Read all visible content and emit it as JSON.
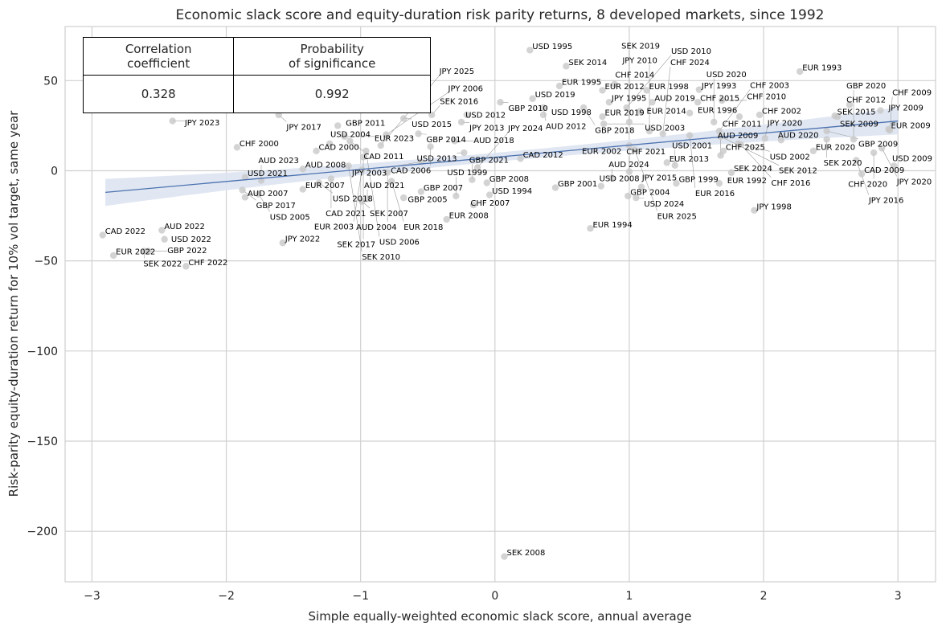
{
  "chart_data": {
    "type": "scatter",
    "title": "Economic slack score and equity-duration risk parity returns, 8 developed markets, since 1992",
    "xlabel": "Simple equally-weighted economic slack score, annual average",
    "ylabel": "Risk-parity equity-duration return for 10% vol target, same year",
    "xlim": [
      -3.2,
      3.28
    ],
    "ylim": [
      -228,
      80
    ],
    "xticks": [
      -3,
      -2,
      -1,
      0,
      1,
      2,
      3
    ],
    "yticks": [
      -200,
      -150,
      -100,
      -50,
      0,
      50
    ],
    "xtick_labels": [
      "−3",
      "−2",
      "−1",
      "0",
      "1",
      "2",
      "3"
    ],
    "ytick_labels": [
      "−200",
      "−150",
      "−100",
      "−50",
      "0",
      "50"
    ],
    "grid": true,
    "colors": {
      "points": "#c8c8c8",
      "regression": "#4c72b0",
      "band": "#dbe3f0",
      "grid": "#d0d0d0"
    },
    "regression": {
      "x": [
        -2.9,
        3.0
      ],
      "y": [
        -12.0,
        27.6
      ],
      "ci_halfwidth_center": 2.5,
      "ci_halfwidth_ends": 7.5
    },
    "points": [
      {
        "label": "USD 1995",
        "x": 0.26,
        "y": 66.9
      },
      {
        "label": "SEK 2014",
        "x": 0.53,
        "y": 58
      },
      {
        "label": "EUR 1993",
        "x": 2.27,
        "y": 55
      },
      {
        "label": "EUR 1995",
        "x": 0.48,
        "y": 47
      },
      {
        "label": "CHF 2014",
        "x": 0.89,
        "y": 48
      },
      {
        "label": "EUR 2012",
        "x": 0.8,
        "y": 44.6
      },
      {
        "label": "EUR 1998",
        "x": 1.13,
        "y": 44.6
      },
      {
        "label": "JPY 1993",
        "x": 1.52,
        "y": 45
      },
      {
        "label": "USD 2019",
        "x": 0.28,
        "y": 40
      },
      {
        "label": "GBP 2010",
        "x": 0.04,
        "y": 38
      },
      {
        "label": "AUD 2012",
        "x": 0.36,
        "y": 35
      },
      {
        "label": "CHF 2015",
        "x": 1.51,
        "y": 38
      },
      {
        "label": "CHF 2010",
        "x": 1.69,
        "y": 39
      },
      {
        "label": "JPY 1995",
        "x": 0.85,
        "y": 38
      },
      {
        "label": "AUD 2019",
        "x": 1.17,
        "y": 38
      },
      {
        "label": "GBP 2018",
        "x": 0.66,
        "y": 35
      },
      {
        "label": "EUR 2014",
        "x": 1.08,
        "y": 33
      },
      {
        "label": "EUR 1996",
        "x": 1.45,
        "y": 32
      },
      {
        "label": "CHF 2011",
        "x": 1.82,
        "y": 30
      },
      {
        "label": "CHF 2002",
        "x": 1.97,
        "y": 31
      },
      {
        "label": "USD 2020",
        "x": 1.63,
        "y": 27
      },
      {
        "label": "CHF 2003",
        "x": 1.67,
        "y": 22
      },
      {
        "label": "SEK 2012",
        "x": 1.68,
        "y": 19
      },
      {
        "label": "EUR 2016",
        "x": 1.45,
        "y": 19.6
      },
      {
        "label": "JPY 2010",
        "x": 1.15,
        "y": 22
      },
      {
        "label": "CHF 2024",
        "x": 1.25,
        "y": 20.5
      },
      {
        "label": "EUR 2002",
        "x": 1.0,
        "y": 14
      },
      {
        "label": "EUR 2025",
        "x": 1.04,
        "y": 11.6
      },
      {
        "label": "JPY 2020",
        "x": 2.01,
        "y": 18
      },
      {
        "label": "AUD 2020",
        "x": 2.13,
        "y": 17
      },
      {
        "label": "USD 2002",
        "x": 1.81,
        "y": 15
      },
      {
        "label": "CHF 2016",
        "x": 1.83,
        "y": 14.5
      },
      {
        "label": "CHF 2025",
        "x": 1.7,
        "y": 11
      },
      {
        "label": "AUD 2009",
        "x": 1.68,
        "y": 8.5
      },
      {
        "label": "SEK 2024",
        "x": 1.76,
        "y": -1
      },
      {
        "label": "EUR 1992",
        "x": 1.67,
        "y": -7
      },
      {
        "label": "GBP 1999",
        "x": 1.35,
        "y": -7
      },
      {
        "label": "JPY 1998",
        "x": 1.93,
        "y": -22
      },
      {
        "label": "CHF 2012",
        "x": 2.64,
        "y": 36.6
      },
      {
        "label": "JPY 2009",
        "x": 2.87,
        "y": 33.4
      },
      {
        "label": "SEK 2015",
        "x": 2.53,
        "y": 30.5
      },
      {
        "label": "SEK 2009",
        "x": 2.55,
        "y": 30
      },
      {
        "label": "GBP 2009",
        "x": 2.47,
        "y": 22
      },
      {
        "label": "EUR 2009",
        "x": 2.93,
        "y": 23
      },
      {
        "label": "CHF 2009",
        "x": 2.94,
        "y": 22.5
      },
      {
        "label": "SEK 2020",
        "x": 2.47,
        "y": 17.4
      },
      {
        "label": "GBP 2020",
        "x": 2.67,
        "y": 17.4
      },
      {
        "label": "EUR 2020",
        "x": 2.37,
        "y": 11
      },
      {
        "label": "JPY 2020",
        "x": 2.88,
        "y": 12.5
      },
      {
        "label": "CHF 2020",
        "x": 2.82,
        "y": 10
      },
      {
        "label": "JPY 2016",
        "x": 2.69,
        "y": 5.8
      },
      {
        "label": "USD 2009",
        "x": 2.97,
        "y": 2.7
      },
      {
        "label": "CAD 2009",
        "x": 2.73,
        "y": -1.8
      },
      {
        "label": "USD 2008",
        "x": 0.79,
        "y": -8.5
      },
      {
        "label": "GBP 2004",
        "x": 0.99,
        "y": -14
      },
      {
        "label": "USD 2024",
        "x": 1.05,
        "y": -15
      },
      {
        "label": "AUD 2024",
        "x": 0.87,
        "y": -4
      },
      {
        "label": "JPY 2015",
        "x": 1.09,
        "y": -9
      },
      {
        "label": "GBP 2001",
        "x": 0.45,
        "y": -9.4
      },
      {
        "label": "EUR 1994",
        "x": 0.71,
        "y": -32
      },
      {
        "label": "USD 1994",
        "x": -0.04,
        "y": -13.4
      },
      {
        "label": "CHF 2007",
        "x": -0.16,
        "y": -19
      },
      {
        "label": "EUR 2008",
        "x": -0.36,
        "y": -27
      },
      {
        "label": "GBP 2008",
        "x": -0.06,
        "y": -6.7
      },
      {
        "label": "GBP 2007",
        "x": -0.55,
        "y": -11.6
      },
      {
        "label": "USD 1999",
        "x": -0.29,
        "y": -14
      },
      {
        "label": "AUD 2021",
        "x": -0.95,
        "y": -15.6
      },
      {
        "label": "SEK 2007",
        "x": -0.99,
        "y": -17
      },
      {
        "label": "GBP 2005",
        "x": -0.68,
        "y": -15
      },
      {
        "label": "EUR 2018",
        "x": -0.77,
        "y": -5.8
      },
      {
        "label": "SEK 2008",
        "x": 0.07,
        "y": -214
      },
      {
        "label": "JPY 2022",
        "x": -1.58,
        "y": -40
      },
      {
        "label": "CHF 2022",
        "x": -2.3,
        "y": -53
      },
      {
        "label": "CAD 2022",
        "x": -2.92,
        "y": -35.7
      },
      {
        "label": "AUD 2022",
        "x": -2.48,
        "y": -33
      },
      {
        "label": "USD 2022",
        "x": -2.46,
        "y": -38
      },
      {
        "label": "EUR 2022",
        "x": -2.84,
        "y": -47
      },
      {
        "label": "SEK 2022",
        "x": -2.61,
        "y": -44.6
      },
      {
        "label": "GBP 2022",
        "x": -2.58,
        "y": -44.6
      },
      {
        "label": "JPY 2023",
        "x": -2.4,
        "y": 27.6
      },
      {
        "label": "CHF 2000",
        "x": -1.92,
        "y": 13
      },
      {
        "label": "USD 2021",
        "x": -1.86,
        "y": -3.6
      },
      {
        "label": "AUD 2023",
        "x": -1.74,
        "y": -5.4
      },
      {
        "label": "GBP 2017",
        "x": -1.88,
        "y": -10.7
      },
      {
        "label": "USD 2005",
        "x": -1.76,
        "y": -13
      },
      {
        "label": "AUD 2007",
        "x": -1.86,
        "y": -14.7
      },
      {
        "label": "EUR 2007",
        "x": -1.43,
        "y": -10.3
      },
      {
        "label": "AUD 2008",
        "x": -1.43,
        "y": 1
      },
      {
        "label": "USD 2018",
        "x": -1.31,
        "y": -6.7
      },
      {
        "label": "CAD 2021",
        "x": -1.22,
        "y": -4.5
      },
      {
        "label": "CAD 2000",
        "x": -1.33,
        "y": 11
      },
      {
        "label": "USD 2004",
        "x": -1.23,
        "y": 15
      },
      {
        "label": "GBP 2011",
        "x": -1.17,
        "y": 25
      },
      {
        "label": "EUR 2023",
        "x": -1.12,
        "y": 19
      },
      {
        "label": "JPY 2006",
        "x": -0.81,
        "y": 20
      },
      {
        "label": "JPY 2025",
        "x": -0.85,
        "y": 14
      },
      {
        "label": "USD 2006",
        "x": -0.96,
        "y": 11
      },
      {
        "label": "CAD 2011",
        "x": -1.08,
        "y": 16.5
      },
      {
        "label": "SEK 2017",
        "x": -0.98,
        "y": 7.6
      },
      {
        "label": "GBP 2014",
        "x": -0.57,
        "y": 20.5
      },
      {
        "label": "CAD 2006",
        "x": -0.48,
        "y": 13.4
      },
      {
        "label": "USD 2015",
        "x": -0.68,
        "y": 29
      },
      {
        "label": "SEK 2016",
        "x": -0.47,
        "y": 31
      },
      {
        "label": "USD 2012",
        "x": -0.21,
        "y": 31
      },
      {
        "label": "JPY 2013",
        "x": -0.25,
        "y": 27
      },
      {
        "label": "AUD 2018",
        "x": -0.3,
        "y": 16.5
      },
      {
        "label": "USD 2013",
        "x": -0.23,
        "y": 10
      },
      {
        "label": "JPY 2003",
        "x": -0.55,
        "y": 5
      },
      {
        "label": "SEK 2010",
        "x": -1.09,
        "y": 2.7
      },
      {
        "label": "EUR 2003",
        "x": -0.99,
        "y": 0.5
      },
      {
        "label": "AUD 2004",
        "x": -0.8,
        "y": -1
      },
      {
        "label": "JPY 2024",
        "x": -0.13,
        "y": 1.8
      },
      {
        "label": "GBP 2021",
        "x": -0.17,
        "y": -5
      },
      {
        "label": "JPY 2017",
        "x": -1.61,
        "y": 31
      },
      {
        "label": "USD 2003",
        "x": 0.81,
        "y": 26
      },
      {
        "label": "SEK 2019",
        "x": 1.0,
        "y": 27
      },
      {
        "label": "EUR 2019",
        "x": 0.8,
        "y": 30
      },
      {
        "label": "USD 2010",
        "x": 0.98,
        "y": 35
      },
      {
        "label": "EUR 2013",
        "x": 1.28,
        "y": 4.5
      },
      {
        "label": "USD 2001",
        "x": 1.34,
        "y": 3
      },
      {
        "label": "CHF 2021",
        "x": 1.0,
        "y": -0.5
      },
      {
        "label": "CAD 2012",
        "x": 0.19,
        "y": 6.7
      },
      {
        "label": "USD 1998",
        "x": 0.36,
        "y": 31
      }
    ]
  },
  "stats_table": {
    "headers": [
      "Correlation\ncoefficient",
      "Probability\nof significance"
    ],
    "values": [
      "0.328",
      "0.992"
    ]
  }
}
